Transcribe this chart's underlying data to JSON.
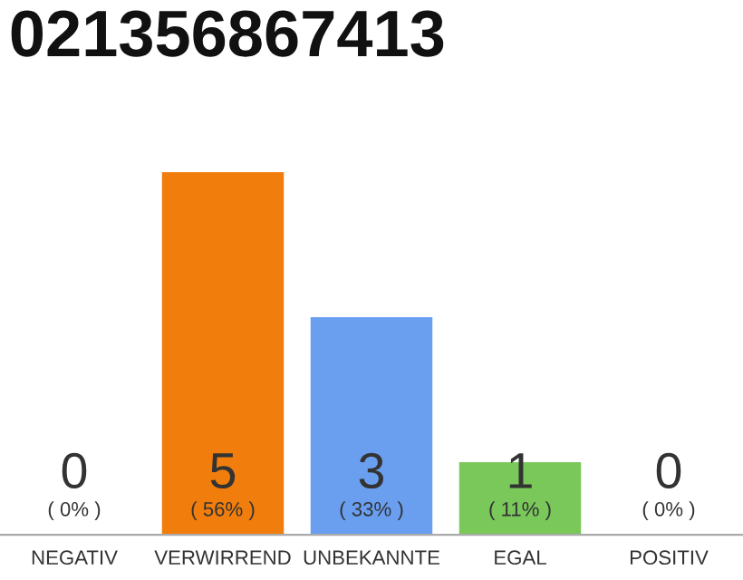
{
  "chart_data": {
    "type": "bar",
    "title": "021356867413",
    "categories": [
      "NEGATIV",
      "VERWIRREND",
      "UNBEKANNTE",
      "EGAL",
      "POSITIV"
    ],
    "values": [
      0,
      5,
      3,
      1,
      0
    ],
    "colors": [
      "#cccccc",
      "#f07d0c",
      "#6a9ff0",
      "#7ac85a",
      "#cccccc"
    ],
    "value_labels": [
      "0\n( 0% )",
      "5\n( 56% )",
      "3\n( 33% )",
      "1\n( 11% )",
      "0\n( 0% )"
    ],
    "grid": false,
    "legend": false
  }
}
